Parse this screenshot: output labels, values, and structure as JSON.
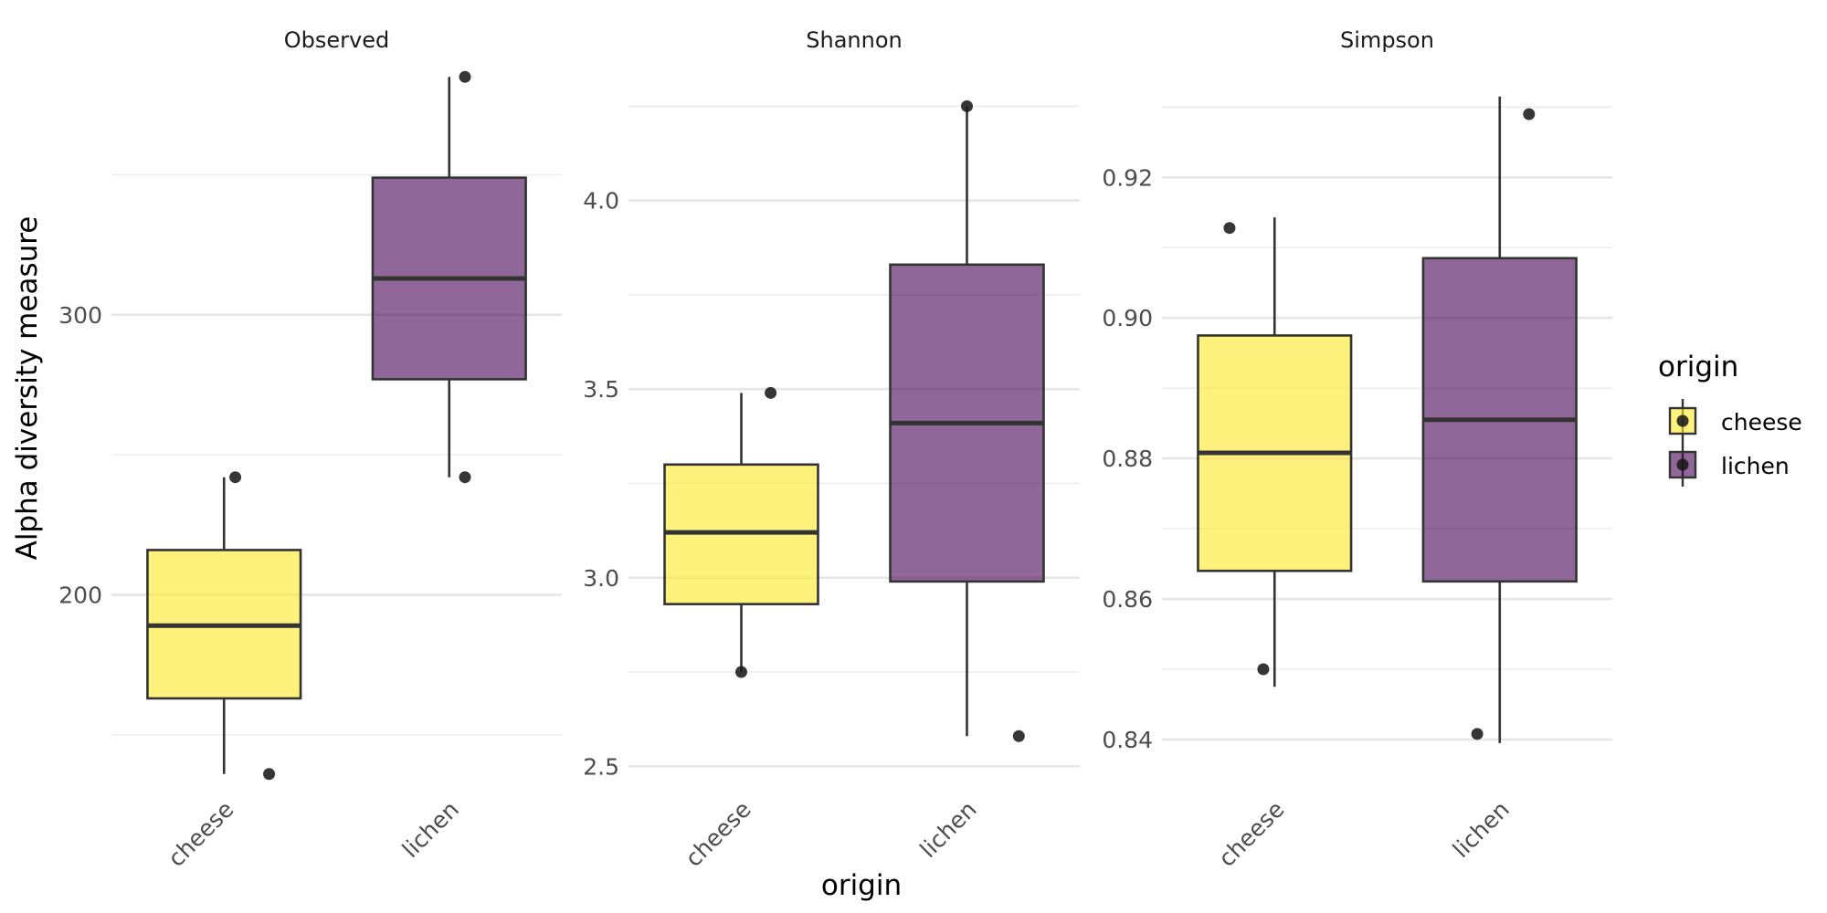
{
  "chart_data": {
    "type": "box",
    "xlabel": "origin",
    "ylabel": "Alpha diversity measure",
    "legend": {
      "title": "origin",
      "placement": "right",
      "entries": [
        {
          "label": "cheese",
          "color": "#FDE725"
        },
        {
          "label": "lichen",
          "color": "#440154"
        }
      ]
    },
    "box_opacity": 0.6,
    "grid": true,
    "panels": [
      {
        "title": "Observed",
        "ylim": [
          132,
          388
        ],
        "major_ticks": [
          200,
          300
        ],
        "minor_ticks": [
          150,
          250,
          350
        ],
        "tick_labels": [
          "200",
          "300"
        ],
        "categories": [
          "cheese",
          "lichen"
        ],
        "boxes": [
          {
            "category": "cheese",
            "min": 136,
            "q1": 163,
            "median": 189,
            "q3": 216,
            "max": 242
          },
          {
            "category": "lichen",
            "min": 242,
            "q1": 277,
            "median": 313,
            "q3": 349,
            "max": 385
          }
        ],
        "points": [
          {
            "category": "cheese",
            "y": 242,
            "jitter": 0.05
          },
          {
            "category": "cheese",
            "y": 136,
            "jitter": 0.2
          },
          {
            "category": "lichen",
            "y": 385,
            "jitter": 0.07
          },
          {
            "category": "lichen",
            "y": 242,
            "jitter": 0.07
          }
        ]
      },
      {
        "title": "Shannon",
        "ylim": [
          2.45,
          4.35
        ],
        "major_ticks": [
          2.5,
          3.0,
          3.5,
          4.0
        ],
        "minor_ticks": [
          2.75,
          3.25,
          3.75,
          4.25
        ],
        "tick_labels": [
          "2.5",
          "3.0",
          "3.5",
          "4.0"
        ],
        "categories": [
          "cheese",
          "lichen"
        ],
        "boxes": [
          {
            "category": "cheese",
            "min": 2.75,
            "q1": 2.93,
            "median": 3.12,
            "q3": 3.3,
            "max": 3.49
          },
          {
            "category": "lichen",
            "min": 2.58,
            "q1": 2.99,
            "median": 3.41,
            "q3": 3.83,
            "max": 4.25
          }
        ],
        "points": [
          {
            "category": "cheese",
            "y": 3.49,
            "jitter": 0.13
          },
          {
            "category": "cheese",
            "y": 2.75,
            "jitter": 0.0
          },
          {
            "category": "lichen",
            "y": 4.25,
            "jitter": 0.0
          },
          {
            "category": "lichen",
            "y": 2.58,
            "jitter": 0.23
          }
        ]
      },
      {
        "title": "Simpson",
        "ylim": [
          0.8335,
          0.9355
        ],
        "major_ticks": [
          0.84,
          0.86,
          0.88,
          0.9,
          0.92
        ],
        "minor_ticks": [
          0.85,
          0.87,
          0.89,
          0.91,
          0.93
        ],
        "tick_labels": [
          "0.84",
          "0.86",
          "0.88",
          "0.90",
          "0.92"
        ],
        "categories": [
          "cheese",
          "lichen"
        ],
        "boxes": [
          {
            "category": "cheese",
            "min": 0.8475,
            "q1": 0.864,
            "median": 0.8808,
            "q3": 0.8975,
            "max": 0.9143
          },
          {
            "category": "lichen",
            "min": 0.8395,
            "q1": 0.8625,
            "median": 0.8855,
            "q3": 0.9085,
            "max": 0.9315
          }
        ],
        "points": [
          {
            "category": "cheese",
            "y": 0.9128,
            "jitter": -0.2
          },
          {
            "category": "cheese",
            "y": 0.85,
            "jitter": -0.05
          },
          {
            "category": "lichen",
            "y": 0.929,
            "jitter": 0.13
          },
          {
            "category": "lichen",
            "y": 0.8408,
            "jitter": -0.1
          }
        ]
      }
    ]
  }
}
